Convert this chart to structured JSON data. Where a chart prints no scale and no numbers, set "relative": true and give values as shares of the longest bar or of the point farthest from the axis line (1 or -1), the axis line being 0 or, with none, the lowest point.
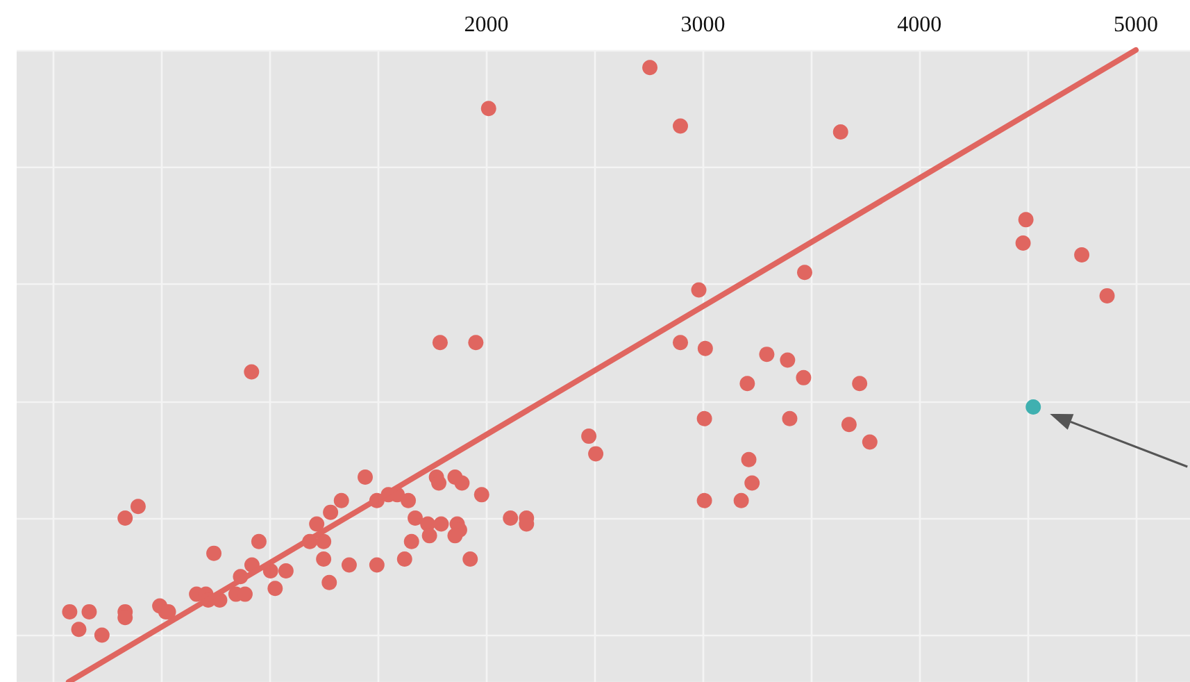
{
  "chart_data": {
    "type": "scatter",
    "relative": true,
    "grid": true,
    "marker": "circle",
    "xlim": [
      -170,
      5250
    ],
    "xticks": [
      {
        "value": 0,
        "label": null
      },
      {
        "value": 500,
        "label": null
      },
      {
        "value": 1000,
        "label": null
      },
      {
        "value": 1500,
        "label": null
      },
      2000,
      {
        "value": 2500,
        "label": null
      },
      3000,
      {
        "value": 3500,
        "label": null
      },
      4000,
      {
        "value": 4500,
        "label": null
      },
      5000
    ],
    "series": [
      {
        "color": "#e06660",
        "x": [
          75,
          165,
          117,
          224,
          331,
          391,
          331,
          331,
          491,
          519,
          531,
          741,
          661,
          704,
          715,
          768,
          843,
          885,
          864,
          917,
          949,
          1003,
          1024,
          1074,
          1184,
          1216,
          1248,
          1248,
          1274,
          1280,
          1330,
          1366,
          1440,
          1494,
          1494,
          1547,
          1588,
          1639,
          1622,
          1654,
          1671,
          1729,
          1737,
          915,
          1786,
          1951,
          1769,
          1780,
          1855,
          1887,
          1978,
          1791,
          1865,
          1876,
          1855,
          2111,
          2185,
          2185,
          1925,
          2010,
          2755,
          2896,
          3636,
          2981,
          2896,
          3011,
          3470,
          3295,
          3391,
          3465,
          3205,
          3724,
          3007,
          3401,
          3675,
          3771,
          2473,
          2505,
          3212,
          3227,
          3007,
          3177,
          4492,
          4479,
          4750,
          4867
        ],
        "values": [
          0.04,
          0.04,
          0.01,
          0.0,
          0.2,
          0.22,
          0.04,
          0.03,
          0.05,
          0.04,
          0.04,
          0.14,
          0.07,
          0.07,
          0.06,
          0.06,
          0.07,
          0.07,
          0.1,
          0.12,
          0.16,
          0.11,
          0.08,
          0.11,
          0.16,
          0.19,
          0.16,
          0.13,
          0.09,
          0.21,
          0.23,
          0.12,
          0.27,
          0.12,
          0.23,
          0.24,
          0.24,
          0.23,
          0.13,
          0.16,
          0.2,
          0.19,
          0.17,
          0.45,
          0.5,
          0.5,
          0.27,
          0.26,
          0.27,
          0.26,
          0.24,
          0.19,
          0.19,
          0.18,
          0.17,
          0.2,
          0.2,
          0.19,
          0.13,
          0.9,
          0.97,
          0.87,
          0.86,
          0.59,
          0.5,
          0.49,
          0.62,
          0.48,
          0.47,
          0.44,
          0.43,
          0.43,
          0.37,
          0.37,
          0.36,
          0.33,
          0.34,
          0.31,
          0.3,
          0.26,
          0.23,
          0.23,
          0.71,
          0.67,
          0.65,
          0.58
        ]
      },
      {
        "color": "#3fb0b0",
        "x": [
          4526
        ],
        "values": [
          0.39
        ]
      },
      {
        "type": "line",
        "color": "#e06660",
        "marker": "none",
        "line_style": "solid",
        "x": [
          70,
          5000
        ],
        "values": [
          -0.08,
          1.0
        ]
      }
    ]
  }
}
